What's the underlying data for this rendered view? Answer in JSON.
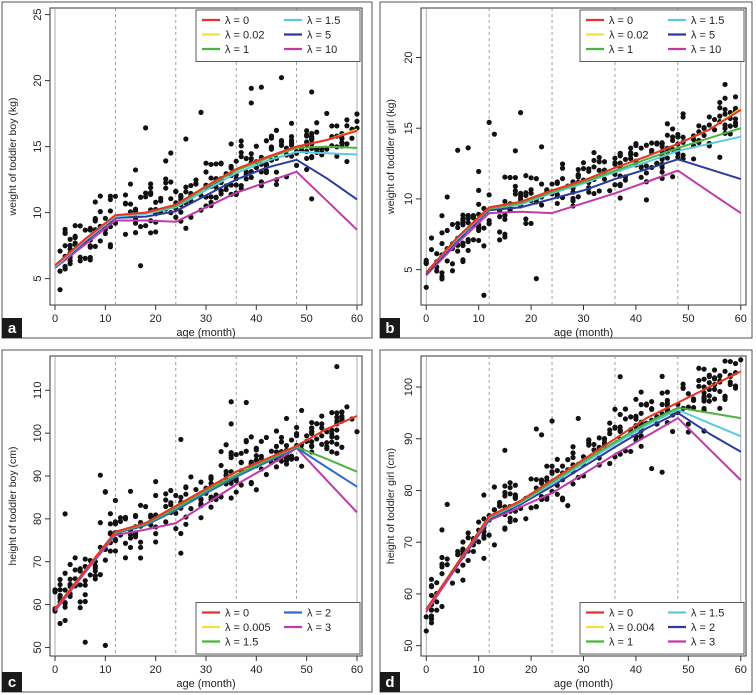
{
  "figure": {
    "panels": [
      {
        "letter": "a"
      },
      {
        "letter": "b"
      },
      {
        "letter": "c"
      },
      {
        "letter": "d"
      }
    ]
  },
  "chart_data": [
    {
      "type": "line",
      "panel": "a",
      "xlabel": "age (month)",
      "ylabel": "weight of toddler boy (kg)",
      "xlim": [
        -1,
        61
      ],
      "ylim": [
        3,
        25.5
      ],
      "xticks": [
        0,
        10,
        20,
        30,
        40,
        50,
        60
      ],
      "yticks": [
        5,
        10,
        15,
        20,
        25
      ],
      "vlines": [
        12,
        24,
        36,
        48
      ],
      "legend_position": "top-right",
      "legend_columns": 2,
      "series": [
        {
          "name": "λ = 0",
          "color": "#e8312a",
          "x": [
            0,
            6,
            12,
            18,
            24,
            30,
            36,
            42,
            48,
            54,
            60
          ],
          "values": [
            6.0,
            8.0,
            9.8,
            10.0,
            10.6,
            12.0,
            13.3,
            14.2,
            15.0,
            15.5,
            16.2
          ]
        },
        {
          "name": "λ = 0.02",
          "color": "#f2e13c",
          "x": [
            0,
            6,
            12,
            18,
            24,
            30,
            36,
            42,
            48,
            54,
            60
          ],
          "values": [
            6.0,
            8.0,
            9.8,
            10.0,
            10.6,
            12.0,
            13.3,
            14.2,
            15.0,
            15.5,
            16.3
          ]
        },
        {
          "name": "λ = 1",
          "color": "#4cb33e",
          "x": [
            0,
            6,
            12,
            18,
            24,
            30,
            36,
            42,
            48,
            54,
            60
          ],
          "values": [
            6.0,
            8.0,
            9.8,
            10.0,
            10.5,
            11.9,
            13.2,
            14.1,
            14.9,
            15.0,
            14.9
          ]
        },
        {
          "name": "λ = 1.5",
          "color": "#5ec8e0",
          "x": [
            0,
            6,
            12,
            18,
            24,
            30,
            36,
            42,
            48,
            54,
            60
          ],
          "values": [
            5.9,
            7.9,
            9.7,
            9.9,
            10.4,
            11.7,
            13.0,
            13.9,
            14.6,
            14.5,
            14.4
          ]
        },
        {
          "name": "λ = 5",
          "color": "#2c3b9c",
          "x": [
            0,
            6,
            12,
            18,
            24,
            30,
            36,
            42,
            48,
            54,
            60
          ],
          "values": [
            5.9,
            7.8,
            9.6,
            9.7,
            10.1,
            11.3,
            12.5,
            13.4,
            14.0,
            12.6,
            11.0
          ]
        },
        {
          "name": "λ = 10",
          "color": "#c03aa8",
          "x": [
            0,
            6,
            12,
            18,
            24,
            30,
            36,
            42,
            48,
            54,
            60
          ],
          "values": [
            5.8,
            7.6,
            9.4,
            9.4,
            9.3,
            10.4,
            11.5,
            12.3,
            13.1,
            10.9,
            8.7
          ]
        }
      ]
    },
    {
      "type": "line",
      "panel": "b",
      "xlabel": "age (month)",
      "ylabel": "weight of toddler girl (kg)",
      "xlim": [
        -1,
        61
      ],
      "ylim": [
        2.5,
        23.5
      ],
      "xticks": [
        0,
        10,
        20,
        30,
        40,
        50,
        60
      ],
      "yticks": [
        5,
        10,
        15,
        20
      ],
      "vlines": [
        12,
        24,
        36,
        48
      ],
      "legend_position": "top-right",
      "legend_columns": 2,
      "series": [
        {
          "name": "λ = 0",
          "color": "#e8312a",
          "x": [
            0,
            6,
            12,
            18,
            24,
            30,
            36,
            42,
            48,
            54,
            60
          ],
          "values": [
            4.8,
            7.3,
            9.4,
            9.8,
            10.6,
            11.3,
            12.2,
            13.0,
            13.9,
            14.9,
            16.3
          ]
        },
        {
          "name": "λ = 0.02",
          "color": "#f2e13c",
          "x": [
            0,
            6,
            12,
            18,
            24,
            30,
            36,
            42,
            48,
            54,
            60
          ],
          "values": [
            4.8,
            7.3,
            9.4,
            9.8,
            10.6,
            11.3,
            12.2,
            13.0,
            13.9,
            14.9,
            16.4
          ]
        },
        {
          "name": "λ = 1",
          "color": "#4cb33e",
          "x": [
            0,
            6,
            12,
            18,
            24,
            30,
            36,
            42,
            48,
            54,
            60
          ],
          "values": [
            4.8,
            7.3,
            9.3,
            9.7,
            10.5,
            11.2,
            12.0,
            12.8,
            13.6,
            14.3,
            15.0
          ]
        },
        {
          "name": "λ = 1.5",
          "color": "#5ec8e0",
          "x": [
            0,
            6,
            12,
            18,
            24,
            30,
            36,
            42,
            48,
            54,
            60
          ],
          "values": [
            4.8,
            7.2,
            9.3,
            9.6,
            10.4,
            11.1,
            11.9,
            12.6,
            13.4,
            13.9,
            14.4
          ]
        },
        {
          "name": "λ = 5",
          "color": "#2c3b9c",
          "x": [
            0,
            6,
            12,
            18,
            24,
            30,
            36,
            42,
            48,
            54,
            60
          ],
          "values": [
            4.7,
            7.1,
            9.2,
            9.4,
            10.0,
            10.6,
            11.4,
            12.1,
            12.8,
            12.1,
            11.4
          ]
        },
        {
          "name": "λ = 10",
          "color": "#c03aa8",
          "x": [
            0,
            6,
            12,
            18,
            24,
            30,
            36,
            42,
            48,
            54,
            60
          ],
          "values": [
            4.6,
            6.9,
            9.0,
            9.1,
            9.0,
            9.7,
            10.4,
            11.2,
            12.0,
            10.5,
            9.0
          ]
        }
      ]
    },
    {
      "type": "line",
      "panel": "c",
      "xlabel": "age (month)",
      "ylabel": "height of toddler boy (cm)",
      "xlim": [
        -1,
        61
      ],
      "ylim": [
        48,
        118
      ],
      "xticks": [
        0,
        10,
        20,
        30,
        40,
        50,
        60
      ],
      "yticks": [
        50,
        60,
        70,
        80,
        90,
        100,
        110
      ],
      "vlines": [
        12,
        24,
        36,
        48
      ],
      "legend_position": "bottom-right",
      "legend_columns": 2,
      "series": [
        {
          "name": "λ = 0",
          "color": "#e8312a",
          "x": [
            0,
            6,
            12,
            18,
            24,
            30,
            36,
            42,
            48,
            54,
            60
          ],
          "values": [
            59,
            68,
            77,
            79,
            83,
            87,
            91,
            94,
            97,
            101,
            104
          ]
        },
        {
          "name": "λ = 0.005",
          "color": "#f2e13c",
          "x": [
            0,
            6,
            12,
            18,
            24,
            30,
            36,
            42,
            48,
            54,
            60
          ],
          "values": [
            59,
            68,
            77,
            79,
            83,
            87,
            91,
            94,
            97,
            101,
            104
          ]
        },
        {
          "name": "λ = 1.5",
          "color": "#4cb33e",
          "x": [
            0,
            6,
            12,
            18,
            24,
            30,
            36,
            42,
            48,
            54,
            60
          ],
          "values": [
            59,
            68,
            76.8,
            78.8,
            82.5,
            86.5,
            90.3,
            93.6,
            96.8,
            94,
            91
          ]
        },
        {
          "name": "λ = 2",
          "color": "#2c6cc8",
          "x": [
            0,
            6,
            12,
            18,
            24,
            30,
            36,
            42,
            48,
            54,
            60
          ],
          "values": [
            59,
            67.8,
            76.6,
            78.5,
            82,
            86,
            89.8,
            93.2,
            96.6,
            92,
            87.5
          ]
        },
        {
          "name": "λ = 3",
          "color": "#c03aa8",
          "x": [
            0,
            6,
            12,
            18,
            24,
            30,
            36,
            42,
            48,
            54,
            60
          ],
          "values": [
            58.5,
            67.5,
            76.2,
            77.5,
            79,
            83.5,
            88,
            92,
            96.5,
            89,
            81.5
          ]
        }
      ]
    },
    {
      "type": "line",
      "panel": "d",
      "xlabel": "age (month)",
      "ylabel": "height of toddler girl (cm)",
      "xlim": [
        -1,
        61
      ],
      "ylim": [
        48,
        106
      ],
      "xticks": [
        0,
        10,
        20,
        30,
        40,
        50,
        60
      ],
      "yticks": [
        50,
        60,
        70,
        80,
        90,
        100
      ],
      "vlines": [
        12,
        24,
        36,
        48
      ],
      "legend_position": "bottom-right",
      "legend_columns": 2,
      "series": [
        {
          "name": "λ = 0",
          "color": "#e8312a",
          "x": [
            0,
            6,
            12,
            18,
            24,
            30,
            36,
            42,
            48,
            54,
            60
          ],
          "values": [
            57,
            66,
            75,
            78,
            82,
            86,
            90,
            94,
            97,
            100,
            103
          ]
        },
        {
          "name": "λ = 0.004",
          "color": "#f2e13c",
          "x": [
            0,
            6,
            12,
            18,
            24,
            30,
            36,
            42,
            48,
            54,
            60
          ],
          "values": [
            57,
            66,
            75,
            78,
            82,
            86,
            90,
            94,
            97,
            100,
            103
          ]
        },
        {
          "name": "λ = 1",
          "color": "#4cb33e",
          "x": [
            0,
            6,
            12,
            18,
            24,
            30,
            36,
            42,
            48,
            54,
            60
          ],
          "values": [
            57,
            66,
            74.8,
            77.8,
            81.6,
            85.6,
            89.4,
            93,
            96,
            95,
            94
          ]
        },
        {
          "name": "λ = 1.5",
          "color": "#5ec8e0",
          "x": [
            0,
            6,
            12,
            18,
            24,
            30,
            36,
            42,
            48,
            54,
            60
          ],
          "values": [
            57,
            66,
            74.7,
            77.6,
            81.3,
            85.2,
            89,
            92.6,
            95.6,
            93,
            90.5
          ]
        },
        {
          "name": "λ = 2",
          "color": "#2c3b9c",
          "x": [
            0,
            6,
            12,
            18,
            24,
            30,
            36,
            42,
            48,
            54,
            60
          ],
          "values": [
            57,
            65.8,
            74.5,
            77.3,
            80.8,
            84.6,
            88.4,
            92,
            95,
            91,
            87.5
          ]
        },
        {
          "name": "λ = 3",
          "color": "#c03aa8",
          "x": [
            0,
            6,
            12,
            18,
            24,
            30,
            36,
            42,
            48,
            54,
            60
          ],
          "values": [
            56.5,
            65.5,
            74.2,
            76.8,
            79.5,
            83.2,
            87,
            90.5,
            94,
            88,
            82
          ]
        }
      ]
    }
  ]
}
